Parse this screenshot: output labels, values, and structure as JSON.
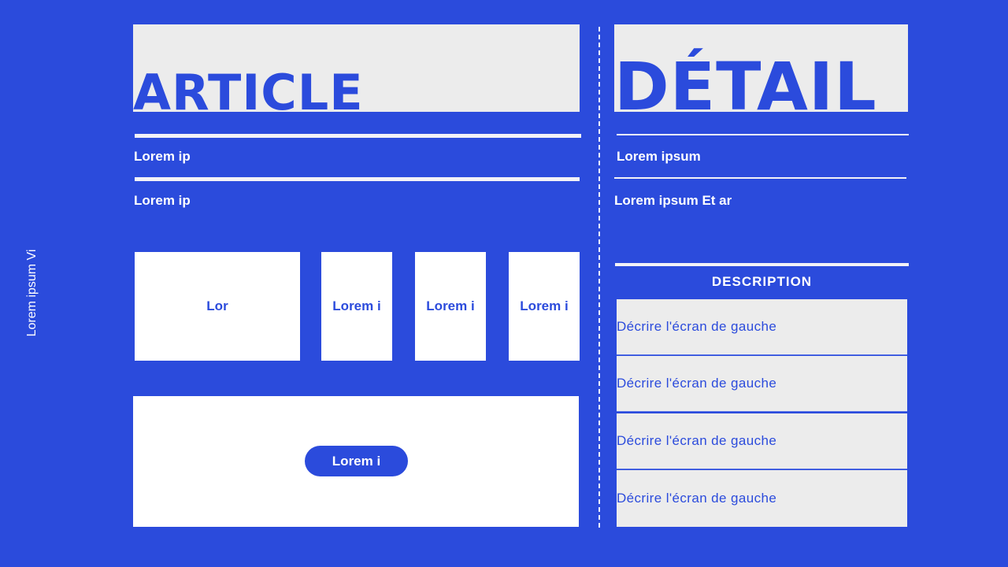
{
  "side_label": "Lorem ipsum Vi",
  "article": {
    "title": "ARTICLE",
    "line1": "Lorem ip",
    "line2": "Lorem ip",
    "cards": [
      "Lor",
      "Lorem i",
      "Lorem i",
      "Lorem i"
    ],
    "button_label": "Lorem i"
  },
  "detail": {
    "title": "DÉTAIL",
    "line1": "Lorem ipsum",
    "line2": "Lorem ipsum Et ar",
    "description_header": "DESCRIPTION",
    "rows": [
      "Décrire l'écran de gauche",
      "Décrire l'écran de gauche",
      "Décrire l'écran de gauche",
      "Décrire l'écran de gauche"
    ]
  },
  "colors": {
    "background": "#2b4bdc",
    "panel": "#ececec",
    "card": "#ffffff"
  }
}
